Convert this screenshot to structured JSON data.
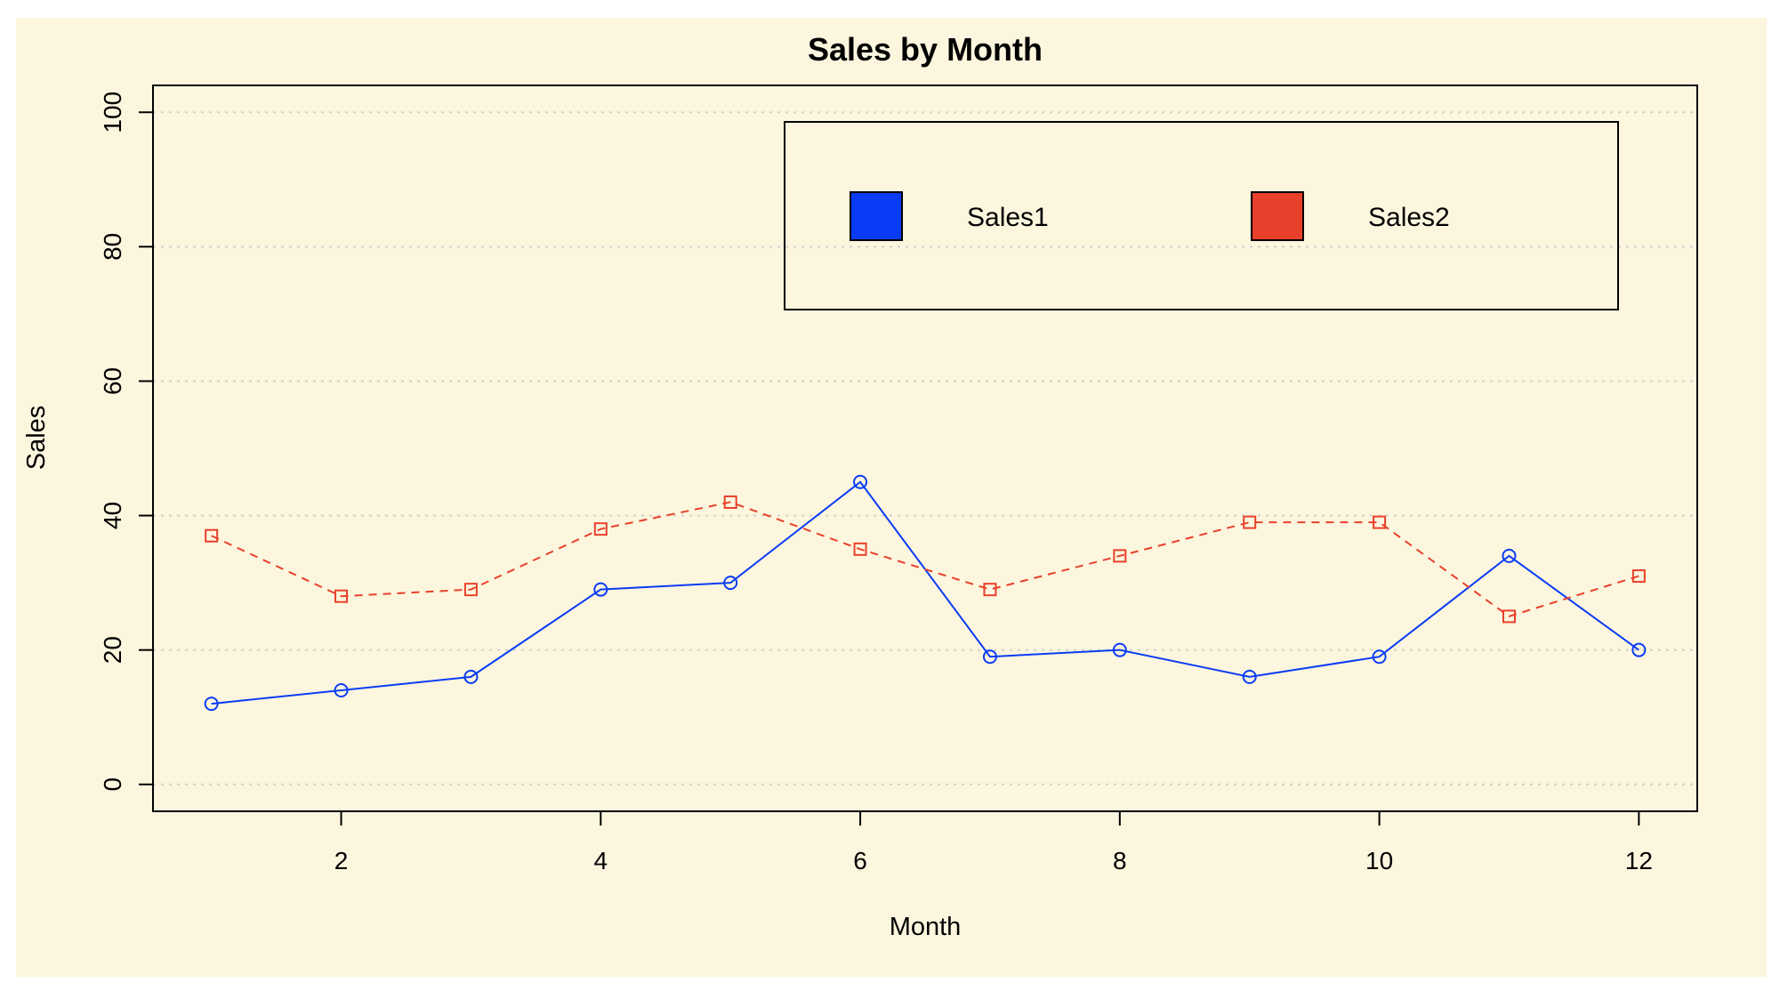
{
  "chart_data": {
    "type": "line",
    "title": "Sales by Month",
    "xlabel": "Month",
    "ylabel": "Sales",
    "x": [
      1,
      2,
      3,
      4,
      5,
      6,
      7,
      8,
      9,
      10,
      11,
      12
    ],
    "xticks": [
      2,
      4,
      6,
      8,
      10,
      12
    ],
    "yticks": [
      0,
      20,
      40,
      60,
      80,
      100
    ],
    "xlim": [
      0.55,
      12.45
    ],
    "ylim": [
      -4,
      104
    ],
    "grid": "horizontal dotted",
    "legend_position": "top-right",
    "series": [
      {
        "name": "Sales1",
        "color": "#0a3cf5",
        "marker": "circle",
        "line": "solid",
        "values": [
          12,
          14,
          16,
          29,
          30,
          45,
          19,
          20,
          16,
          19,
          34,
          20
        ]
      },
      {
        "name": "Sales2",
        "color": "#e8412b",
        "marker": "square",
        "line": "dashed",
        "values": [
          37,
          28,
          29,
          38,
          42,
          35,
          29,
          34,
          39,
          39,
          25,
          31
        ]
      }
    ],
    "background": "#fdf6df"
  }
}
